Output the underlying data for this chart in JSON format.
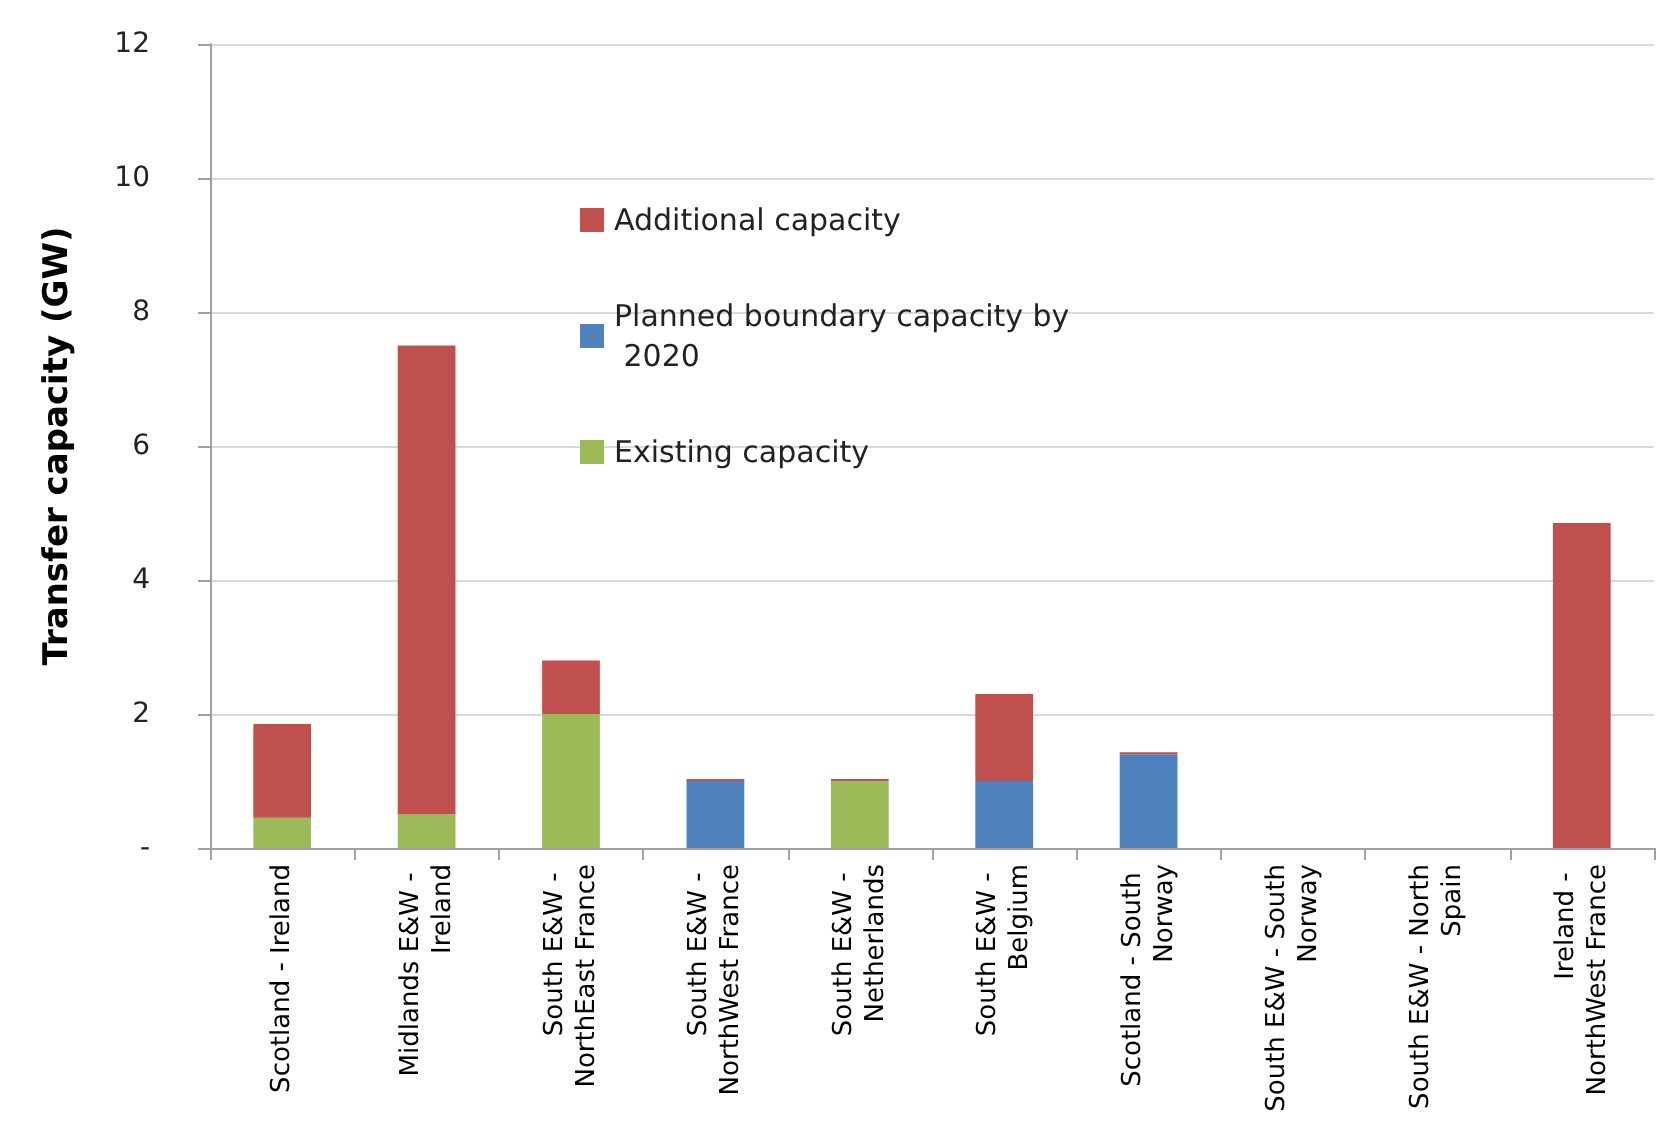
{
  "chart_data": {
    "type": "bar",
    "stacked": true,
    "ylabel": "Transfer capacity (GW)",
    "categories": [
      "Scotland - Ireland",
      "Midlands E&W - Ireland",
      "South E&W - NorthEast France",
      "South E&W - NorthWest France",
      "South E&W - Netherlands",
      "South E&W - Belgium",
      "Scotland - South Norway",
      "South E&W - South Norway",
      "South E&W - North Spain",
      "Ireland - NorthWest France"
    ],
    "series": [
      {
        "name": "Existing capacity",
        "color": "#9bbb59",
        "values": [
          0.45,
          0.5,
          2.0,
          0,
          1.0,
          0,
          0,
          0,
          0,
          0
        ]
      },
      {
        "name": "Planned boundary capacity by 2020",
        "color": "#4f81bd",
        "values": [
          0,
          0,
          0,
          1.0,
          0,
          1.0,
          1.4,
          0,
          0,
          0
        ]
      },
      {
        "name": "Additional capacity",
        "color": "#c0504d",
        "values": [
          1.4,
          7.0,
          0.8,
          0.03,
          0.03,
          1.3,
          0.03,
          0,
          0,
          4.85
        ]
      }
    ],
    "ylim": [
      0,
      12
    ],
    "yticks": [
      {
        "value": 0,
        "label": "-"
      },
      2,
      4,
      6,
      8,
      10,
      12
    ],
    "grid": "y",
    "legend": "top"
  }
}
